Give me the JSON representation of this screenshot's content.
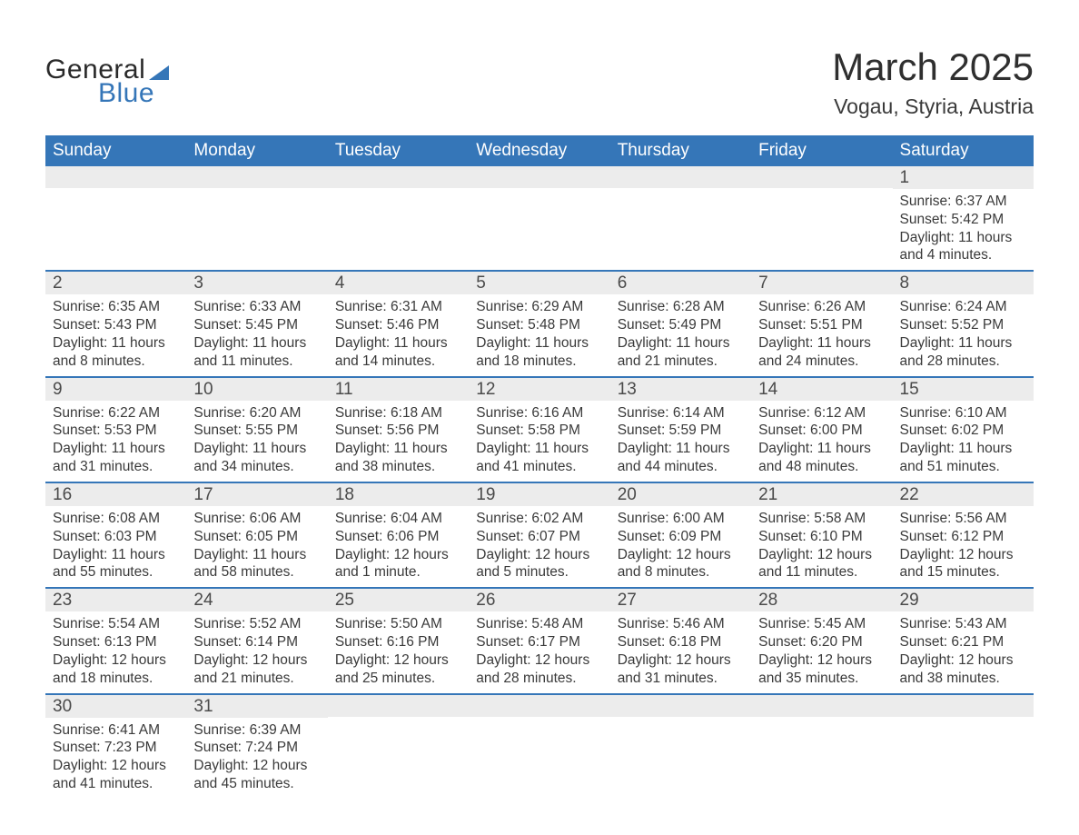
{
  "brand": {
    "text_general": "General",
    "text_blue": "Blue"
  },
  "title": "March 2025",
  "location": "Vogau, Styria, Austria",
  "colors": {
    "header_bg": "#3576b8",
    "header_text": "#ffffff",
    "daynum_bg": "#ececec",
    "row_sep": "#3576b8",
    "body_text": "#3a3a3a",
    "background": "#ffffff"
  },
  "typography": {
    "title_fontsize": 42,
    "location_fontsize": 23,
    "weekday_fontsize": 19,
    "daynum_fontsize": 19,
    "cell_fontsize": 15.5
  },
  "weekdays": [
    "Sunday",
    "Monday",
    "Tuesday",
    "Wednesday",
    "Thursday",
    "Friday",
    "Saturday"
  ],
  "weeks": [
    [
      null,
      null,
      null,
      null,
      null,
      null,
      {
        "day": "1",
        "sunrise": "6:37 AM",
        "sunset": "5:42 PM",
        "daylight": "11 hours and 4 minutes."
      }
    ],
    [
      {
        "day": "2",
        "sunrise": "6:35 AM",
        "sunset": "5:43 PM",
        "daylight": "11 hours and 8 minutes."
      },
      {
        "day": "3",
        "sunrise": "6:33 AM",
        "sunset": "5:45 PM",
        "daylight": "11 hours and 11 minutes."
      },
      {
        "day": "4",
        "sunrise": "6:31 AM",
        "sunset": "5:46 PM",
        "daylight": "11 hours and 14 minutes."
      },
      {
        "day": "5",
        "sunrise": "6:29 AM",
        "sunset": "5:48 PM",
        "daylight": "11 hours and 18 minutes."
      },
      {
        "day": "6",
        "sunrise": "6:28 AM",
        "sunset": "5:49 PM",
        "daylight": "11 hours and 21 minutes."
      },
      {
        "day": "7",
        "sunrise": "6:26 AM",
        "sunset": "5:51 PM",
        "daylight": "11 hours and 24 minutes."
      },
      {
        "day": "8",
        "sunrise": "6:24 AM",
        "sunset": "5:52 PM",
        "daylight": "11 hours and 28 minutes."
      }
    ],
    [
      {
        "day": "9",
        "sunrise": "6:22 AM",
        "sunset": "5:53 PM",
        "daylight": "11 hours and 31 minutes."
      },
      {
        "day": "10",
        "sunrise": "6:20 AM",
        "sunset": "5:55 PM",
        "daylight": "11 hours and 34 minutes."
      },
      {
        "day": "11",
        "sunrise": "6:18 AM",
        "sunset": "5:56 PM",
        "daylight": "11 hours and 38 minutes."
      },
      {
        "day": "12",
        "sunrise": "6:16 AM",
        "sunset": "5:58 PM",
        "daylight": "11 hours and 41 minutes."
      },
      {
        "day": "13",
        "sunrise": "6:14 AM",
        "sunset": "5:59 PM",
        "daylight": "11 hours and 44 minutes."
      },
      {
        "day": "14",
        "sunrise": "6:12 AM",
        "sunset": "6:00 PM",
        "daylight": "11 hours and 48 minutes."
      },
      {
        "day": "15",
        "sunrise": "6:10 AM",
        "sunset": "6:02 PM",
        "daylight": "11 hours and 51 minutes."
      }
    ],
    [
      {
        "day": "16",
        "sunrise": "6:08 AM",
        "sunset": "6:03 PM",
        "daylight": "11 hours and 55 minutes."
      },
      {
        "day": "17",
        "sunrise": "6:06 AM",
        "sunset": "6:05 PM",
        "daylight": "11 hours and 58 minutes."
      },
      {
        "day": "18",
        "sunrise": "6:04 AM",
        "sunset": "6:06 PM",
        "daylight": "12 hours and 1 minute."
      },
      {
        "day": "19",
        "sunrise": "6:02 AM",
        "sunset": "6:07 PM",
        "daylight": "12 hours and 5 minutes."
      },
      {
        "day": "20",
        "sunrise": "6:00 AM",
        "sunset": "6:09 PM",
        "daylight": "12 hours and 8 minutes."
      },
      {
        "day": "21",
        "sunrise": "5:58 AM",
        "sunset": "6:10 PM",
        "daylight": "12 hours and 11 minutes."
      },
      {
        "day": "22",
        "sunrise": "5:56 AM",
        "sunset": "6:12 PM",
        "daylight": "12 hours and 15 minutes."
      }
    ],
    [
      {
        "day": "23",
        "sunrise": "5:54 AM",
        "sunset": "6:13 PM",
        "daylight": "12 hours and 18 minutes."
      },
      {
        "day": "24",
        "sunrise": "5:52 AM",
        "sunset": "6:14 PM",
        "daylight": "12 hours and 21 minutes."
      },
      {
        "day": "25",
        "sunrise": "5:50 AM",
        "sunset": "6:16 PM",
        "daylight": "12 hours and 25 minutes."
      },
      {
        "day": "26",
        "sunrise": "5:48 AM",
        "sunset": "6:17 PM",
        "daylight": "12 hours and 28 minutes."
      },
      {
        "day": "27",
        "sunrise": "5:46 AM",
        "sunset": "6:18 PM",
        "daylight": "12 hours and 31 minutes."
      },
      {
        "day": "28",
        "sunrise": "5:45 AM",
        "sunset": "6:20 PM",
        "daylight": "12 hours and 35 minutes."
      },
      {
        "day": "29",
        "sunrise": "5:43 AM",
        "sunset": "6:21 PM",
        "daylight": "12 hours and 38 minutes."
      }
    ],
    [
      {
        "day": "30",
        "sunrise": "6:41 AM",
        "sunset": "7:23 PM",
        "daylight": "12 hours and 41 minutes."
      },
      {
        "day": "31",
        "sunrise": "6:39 AM",
        "sunset": "7:24 PM",
        "daylight": "12 hours and 45 minutes."
      },
      null,
      null,
      null,
      null,
      null
    ]
  ],
  "labels": {
    "sunrise": "Sunrise: ",
    "sunset": "Sunset: ",
    "daylight": "Daylight: "
  }
}
